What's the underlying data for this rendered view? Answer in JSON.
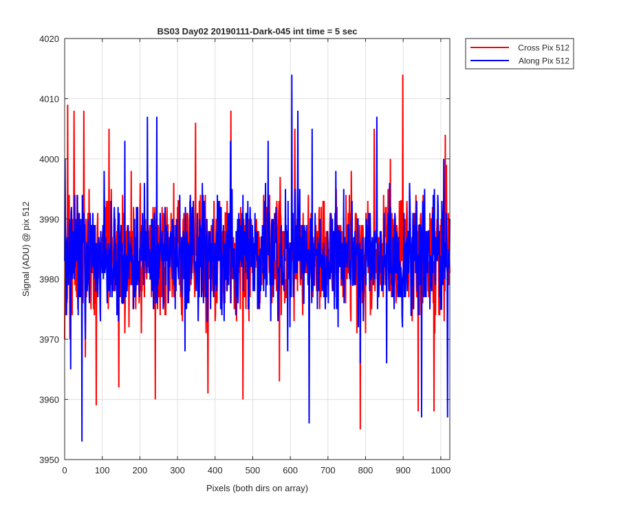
{
  "chart_data": {
    "type": "line",
    "title": "BS03 Day02 20190111-Dark-045 int time = 5 sec",
    "xlabel": "Pixels (both dirs on array)",
    "ylabel": "Signal (ADU) @ pix 512",
    "xlim": [
      0,
      1024
    ],
    "ylim": [
      3950,
      4020
    ],
    "xticks": [
      0,
      100,
      200,
      300,
      400,
      500,
      600,
      700,
      800,
      900,
      1000
    ],
    "yticks": [
      3950,
      3960,
      3970,
      3980,
      3990,
      4000,
      4010,
      4020
    ],
    "grid": true,
    "legend": "outside-top-right",
    "series": [
      {
        "name": "Cross Pix 512",
        "color": "#ff0000",
        "noise": {
          "mean": 3984,
          "std": 6.5,
          "seed": 13
        },
        "spikes": [
          [
            3,
            3976
          ],
          [
            8,
            4009
          ],
          [
            14,
            3970
          ],
          [
            25,
            4008
          ],
          [
            51,
            4008
          ],
          [
            55,
            3967
          ],
          [
            84,
            3959
          ],
          [
            118,
            4005
          ],
          [
            144,
            3962
          ],
          [
            241,
            3960
          ],
          [
            348,
            4006
          ],
          [
            381,
            3961
          ],
          [
            442,
            4008
          ],
          [
            474,
            3960
          ],
          [
            571,
            3963
          ],
          [
            612,
            4005
          ],
          [
            786,
            3955
          ],
          [
            823,
            4005
          ],
          [
            899,
            4014
          ],
          [
            940,
            3958
          ],
          [
            982,
            3958
          ],
          [
            1012,
            4004
          ]
        ]
      },
      {
        "name": "Along Pix 512",
        "color": "#0000ff",
        "noise": {
          "mean": 3984,
          "std": 6.2,
          "seed": 71
        },
        "spikes": [
          [
            1,
            4000
          ],
          [
            16,
            3965
          ],
          [
            46,
            3953
          ],
          [
            55,
            3970
          ],
          [
            160,
            4003
          ],
          [
            220,
            4007
          ],
          [
            245,
            4007
          ],
          [
            320,
            3968
          ],
          [
            441,
            4003
          ],
          [
            541,
            4003
          ],
          [
            604,
            4014
          ],
          [
            620,
            4008
          ],
          [
            650,
            3956
          ],
          [
            658,
            4005
          ],
          [
            786,
            3966
          ],
          [
            830,
            4007
          ],
          [
            856,
            3966
          ],
          [
            949,
            3957
          ],
          [
            1008,
            4000
          ],
          [
            1018,
            3957
          ]
        ]
      }
    ]
  }
}
